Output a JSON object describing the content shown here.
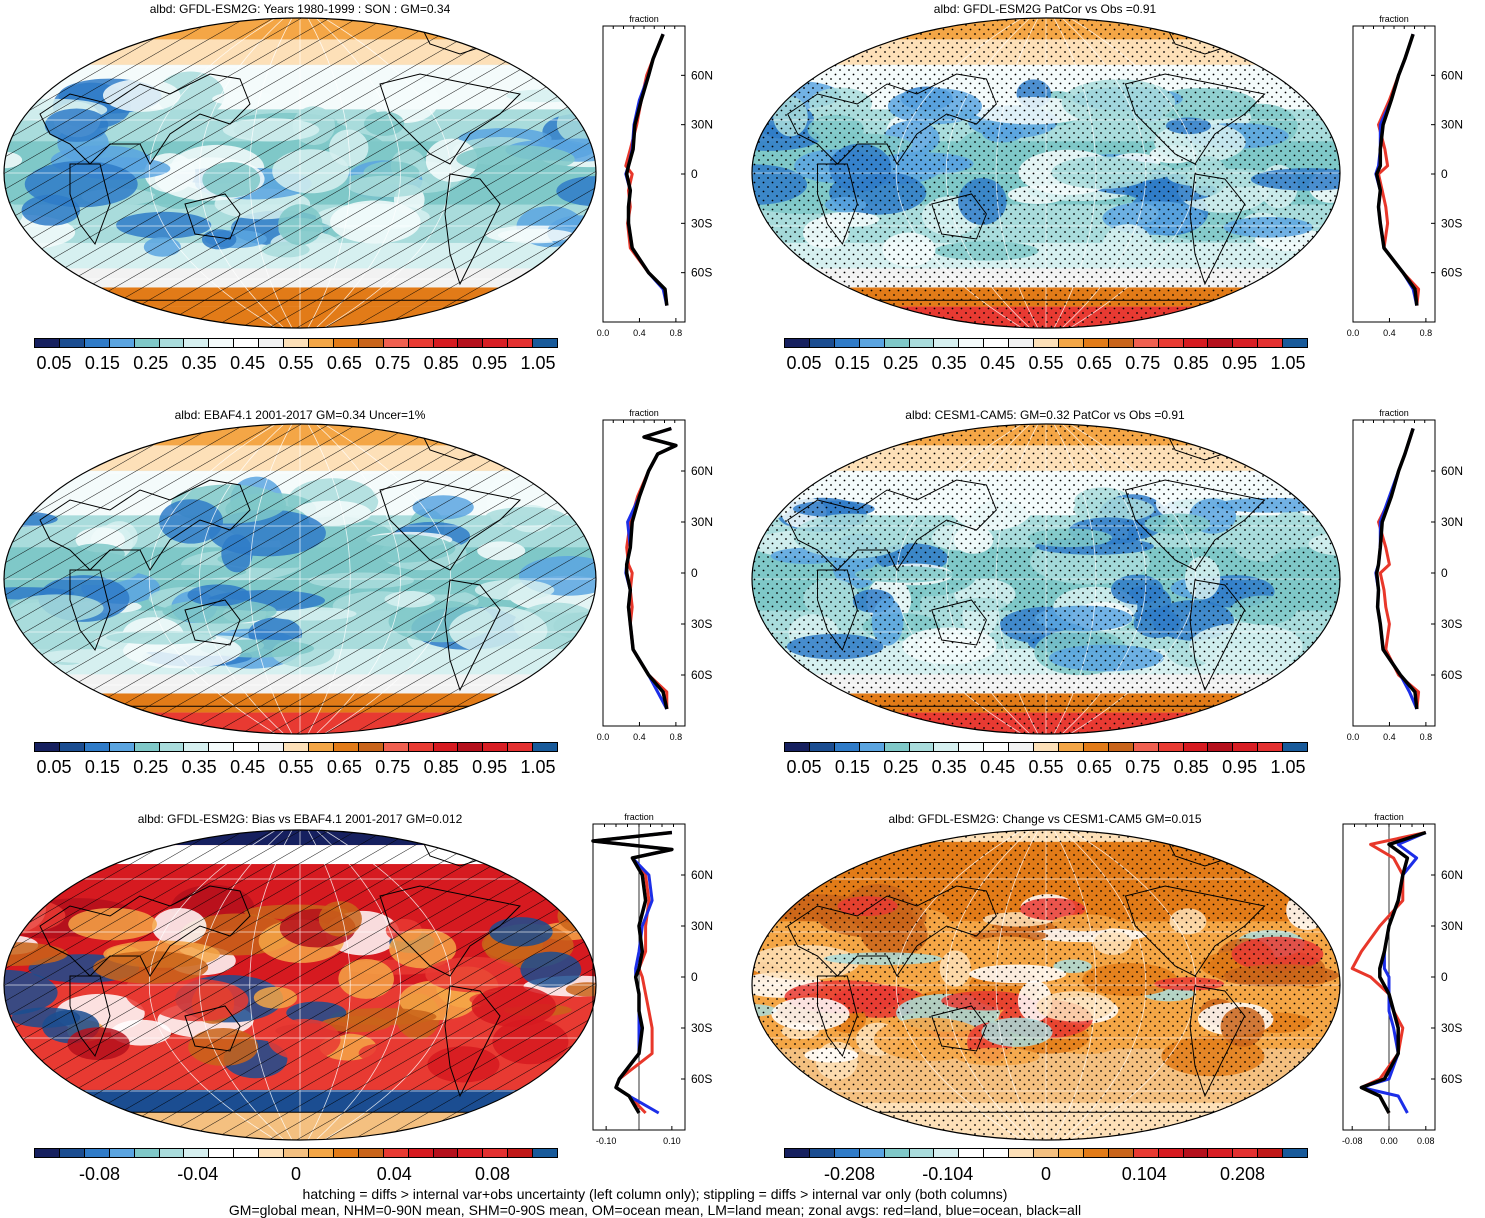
{
  "footer": {
    "line1": "hatching = diffs > internal var+obs uncertainty (left column only); stippling = diffs > internal var only (both columns)",
    "line2": "GM=global mean, NHM=0-90N mean, SHM=0-90S mean, OM=ocean mean, LM=land mean; zonal avgs: red=land, blue=ocean, black=all"
  },
  "colors": {
    "abs_scale": [
      "#16205f",
      "#1b4d91",
      "#2f7bc8",
      "#5aa4e0",
      "#7fc8c8",
      "#a9dcdc",
      "#d6f0f0",
      "#f4fbfb",
      "#ffffff",
      "#f2f2f2",
      "#fde0b8",
      "#f4a646",
      "#e27b18",
      "#c9641a",
      "#f06050",
      "#e83a32",
      "#d61a20",
      "#b5101c",
      "#d81e24",
      "#e33030",
      "#185a9a"
    ],
    "diff_scale": [
      "#16205f",
      "#1b4d91",
      "#2f7bc8",
      "#5aa4e0",
      "#7fc8c8",
      "#a9dcdc",
      "#d6f0f0",
      "#ffffff",
      "#ffffff",
      "#fde0b8",
      "#f4c080",
      "#f4a646",
      "#e27b18",
      "#c9641a",
      "#e83a32",
      "#d61a20",
      "#b5101c",
      "#d81e24",
      "#e33030",
      "#c01818",
      "#185a9a"
    ],
    "land": "#e8372a",
    "ocean": "#1c2ee8",
    "all": "#000000"
  },
  "panels": [
    {
      "id": "p1",
      "title": "albd: GFDL-ESM2G: Years 1980-1999 : SON : GM=0.34",
      "cbar_labels": [
        "0.05",
        "0.15",
        "0.25",
        "0.35",
        "0.45",
        "0.55",
        "0.65",
        "0.75",
        "0.85",
        "0.95",
        "1.05"
      ],
      "zonal_x": [
        "0.0",
        "0.4",
        "0.8"
      ],
      "fraction": "fraction",
      "lat_labels": [
        "60N",
        "30N",
        "0",
        "30S",
        "60S"
      ],
      "pattern": "hatch",
      "scale": "abs"
    },
    {
      "id": "p2",
      "title": "albd: GFDL-ESM2G PatCor vs Obs =0.91",
      "cbar_labels": [
        "0.05",
        "0.15",
        "0.25",
        "0.35",
        "0.45",
        "0.55",
        "0.65",
        "0.75",
        "0.85",
        "0.95",
        "1.05"
      ],
      "zonal_x": [
        "0.0",
        "0.4",
        "0.8"
      ],
      "fraction": "fraction",
      "lat_labels": [
        "60N",
        "30N",
        "0",
        "30S",
        "60S"
      ],
      "pattern": "stipple",
      "scale": "abs"
    },
    {
      "id": "p3",
      "title": "albd: EBAF4.1 2001-2017 GM=0.34 Uncer=1%",
      "cbar_labels": [
        "0.05",
        "0.15",
        "0.25",
        "0.35",
        "0.45",
        "0.55",
        "0.65",
        "0.75",
        "0.85",
        "0.95",
        "1.05"
      ],
      "zonal_x": [
        "0.0",
        "0.4",
        "0.8"
      ],
      "fraction": "fraction",
      "lat_labels": [
        "60N",
        "30N",
        "0",
        "30S",
        "60S"
      ],
      "pattern": "hatch",
      "scale": "abs"
    },
    {
      "id": "p4",
      "title": "albd: CESM1-CAM5: GM=0.32 PatCor vs Obs =0.91",
      "cbar_labels": [
        "0.05",
        "0.15",
        "0.25",
        "0.35",
        "0.45",
        "0.55",
        "0.65",
        "0.75",
        "0.85",
        "0.95",
        "1.05"
      ],
      "zonal_x": [
        "0.0",
        "0.4",
        "0.8"
      ],
      "fraction": "fraction",
      "lat_labels": [
        "60N",
        "30N",
        "0",
        "30S",
        "60S"
      ],
      "pattern": "stipple",
      "scale": "abs"
    },
    {
      "id": "p5",
      "title": "albd: GFDL-ESM2G: Bias vs EBAF4.1 2001-2017  GM=0.012",
      "cbar_labels": [
        "-0.08",
        "-0.04",
        "0",
        "0.04",
        "0.08"
      ],
      "zonal_x": [
        "-0.10",
        "0.10"
      ],
      "fraction": "fraction",
      "lat_labels": [
        "60N",
        "30N",
        "0",
        "30S",
        "60S"
      ],
      "pattern": "hatch",
      "scale": "diff"
    },
    {
      "id": "p6",
      "title": "albd: GFDL-ESM2G: Change vs CESM1-CAM5 GM=0.015",
      "cbar_labels": [
        "-0.208",
        "-0.104",
        "0",
        "0.104",
        "0.208"
      ],
      "zonal_x": [
        "-0.08",
        "0.00",
        "0.08"
      ],
      "fraction": "fraction",
      "lat_labels": [
        "60N",
        "30N",
        "0",
        "30S",
        "60S"
      ],
      "pattern": "stipple",
      "scale": "diff"
    }
  ],
  "chart_data": [
    {
      "type": "heatmap",
      "title": "albd: GFDL-ESM2G: Years 1980-1999 : SON : GM=0.34",
      "colorbar_ticks": [
        0.05,
        0.15,
        0.25,
        0.35,
        0.45,
        0.55,
        0.65,
        0.75,
        0.85,
        0.95,
        1.05
      ],
      "zonal_mean": {
        "xlim": [
          0.0,
          0.9
        ],
        "xticks": [
          0.0,
          0.4,
          0.8
        ],
        "ylabels": [
          "60N",
          "30N",
          "0",
          "30S",
          "60S"
        ],
        "lat": [
          85,
          70,
          60,
          45,
          30,
          15,
          5,
          0,
          -10,
          -20,
          -30,
          -45,
          -60,
          -70,
          -80
        ],
        "all": [
          0.66,
          0.55,
          0.5,
          0.42,
          0.35,
          0.33,
          0.28,
          0.26,
          0.3,
          0.28,
          0.28,
          0.32,
          0.5,
          0.68,
          0.7
        ],
        "land": [
          0.66,
          0.55,
          0.48,
          0.42,
          0.37,
          0.3,
          0.25,
          0.32,
          0.28,
          0.3,
          0.27,
          0.3,
          0.5,
          0.68,
          0.7
        ],
        "ocean": [
          0.66,
          0.55,
          0.5,
          0.4,
          0.34,
          0.32,
          0.28,
          0.25,
          0.3,
          0.28,
          0.28,
          0.32,
          0.5,
          0.66,
          0.7
        ]
      }
    },
    {
      "type": "heatmap",
      "title": "albd: GFDL-ESM2G PatCor vs Obs =0.91",
      "colorbar_ticks": [
        0.05,
        0.15,
        0.25,
        0.35,
        0.45,
        0.55,
        0.65,
        0.75,
        0.85,
        0.95,
        1.05
      ],
      "zonal_mean": {
        "xlim": [
          0.0,
          0.9
        ],
        "xticks": [
          0.0,
          0.4,
          0.8
        ],
        "ylabels": [
          "60N",
          "30N",
          "0",
          "30S",
          "60S"
        ],
        "lat": [
          85,
          70,
          60,
          45,
          30,
          15,
          5,
          0,
          -10,
          -20,
          -30,
          -45,
          -60,
          -70,
          -80
        ],
        "all": [
          0.66,
          0.57,
          0.5,
          0.42,
          0.33,
          0.3,
          0.3,
          0.26,
          0.3,
          0.28,
          0.3,
          0.34,
          0.55,
          0.68,
          0.7
        ],
        "land": [
          0.66,
          0.57,
          0.5,
          0.4,
          0.28,
          0.35,
          0.38,
          0.28,
          0.32,
          0.36,
          0.38,
          0.34,
          0.55,
          0.72,
          0.7
        ],
        "ocean": [
          0.66,
          0.57,
          0.5,
          0.42,
          0.3,
          0.3,
          0.28,
          0.25,
          0.3,
          0.28,
          0.3,
          0.34,
          0.55,
          0.66,
          0.7
        ]
      }
    },
    {
      "type": "heatmap",
      "title": "albd: EBAF4.1 2001-2017 GM=0.34 Uncer=1%",
      "colorbar_ticks": [
        0.05,
        0.15,
        0.25,
        0.35,
        0.45,
        0.55,
        0.65,
        0.75,
        0.85,
        0.95,
        1.05
      ],
      "zonal_mean": {
        "xlim": [
          0.0,
          0.9
        ],
        "xticks": [
          0.0,
          0.4,
          0.8
        ],
        "ylabels": [
          "60N",
          "30N",
          "0",
          "30S",
          "60S"
        ],
        "lat": [
          85,
          80,
          75,
          70,
          60,
          45,
          30,
          15,
          5,
          0,
          -10,
          -20,
          -30,
          -45,
          -60,
          -70,
          -80
        ],
        "all": [
          0.75,
          0.45,
          0.8,
          0.6,
          0.5,
          0.4,
          0.32,
          0.3,
          0.26,
          0.26,
          0.3,
          0.28,
          0.3,
          0.33,
          0.5,
          0.66,
          0.7
        ],
        "land": [
          0.75,
          0.45,
          0.8,
          0.6,
          0.5,
          0.38,
          0.3,
          0.26,
          0.28,
          0.32,
          0.3,
          0.32,
          0.3,
          0.33,
          0.5,
          0.7,
          0.7
        ],
        "ocean": [
          0.75,
          0.45,
          0.8,
          0.6,
          0.5,
          0.4,
          0.27,
          0.3,
          0.26,
          0.25,
          0.3,
          0.28,
          0.3,
          0.33,
          0.5,
          0.6,
          0.7
        ]
      }
    },
    {
      "type": "heatmap",
      "title": "albd: CESM1-CAM5: GM=0.32 PatCor vs Obs =0.91",
      "colorbar_ticks": [
        0.05,
        0.15,
        0.25,
        0.35,
        0.45,
        0.55,
        0.65,
        0.75,
        0.85,
        0.95,
        1.05
      ],
      "zonal_mean": {
        "xlim": [
          0.0,
          0.9
        ],
        "xticks": [
          0.0,
          0.4,
          0.8
        ],
        "ylabels": [
          "60N",
          "30N",
          "0",
          "30S",
          "60S"
        ],
        "lat": [
          85,
          70,
          60,
          45,
          30,
          15,
          5,
          0,
          -10,
          -20,
          -30,
          -45,
          -60,
          -70,
          -80
        ],
        "all": [
          0.66,
          0.57,
          0.5,
          0.42,
          0.32,
          0.3,
          0.28,
          0.26,
          0.28,
          0.27,
          0.3,
          0.33,
          0.52,
          0.68,
          0.7
        ],
        "land": [
          0.66,
          0.57,
          0.5,
          0.42,
          0.28,
          0.36,
          0.4,
          0.3,
          0.34,
          0.36,
          0.4,
          0.36,
          0.5,
          0.72,
          0.7
        ],
        "ocean": [
          0.66,
          0.57,
          0.5,
          0.4,
          0.3,
          0.3,
          0.28,
          0.25,
          0.28,
          0.27,
          0.3,
          0.33,
          0.52,
          0.62,
          0.7
        ]
      }
    },
    {
      "type": "heatmap",
      "title": "albd: GFDL-ESM2G: Bias vs EBAF4.1 2001-2017  GM=0.012",
      "colorbar_ticks": [
        -0.08,
        -0.04,
        0,
        0.04,
        0.08
      ],
      "zonal_mean": {
        "xlim": [
          -0.14,
          0.14
        ],
        "xticks": [
          -0.1,
          0.1
        ],
        "ylabels": [
          "60N",
          "30N",
          "0",
          "30S",
          "60S"
        ],
        "lat": [
          85,
          80,
          75,
          70,
          60,
          45,
          30,
          15,
          5,
          0,
          -10,
          -20,
          -30,
          -45,
          -60,
          -65,
          -70,
          -80
        ],
        "all": [
          0.1,
          -0.14,
          0.1,
          -0.02,
          0.01,
          0.02,
          0.0,
          0.01,
          0.0,
          -0.01,
          0.0,
          0.0,
          0.01,
          0.0,
          -0.06,
          -0.07,
          -0.03,
          0.0
        ],
        "land": [
          0.1,
          -0.14,
          0.1,
          -0.02,
          0.02,
          0.03,
          0.02,
          0.02,
          0.0,
          0.01,
          0.02,
          0.03,
          0.04,
          0.04,
          -0.06,
          -0.07,
          -0.03,
          0.02
        ],
        "ocean": [
          0.1,
          -0.14,
          0.1,
          -0.02,
          0.03,
          0.04,
          0.01,
          0.0,
          -0.01,
          -0.01,
          0.0,
          0.0,
          0.0,
          0.0,
          -0.06,
          -0.07,
          -0.03,
          0.06
        ]
      }
    },
    {
      "type": "heatmap",
      "title": "albd: GFDL-ESM2G: Change vs CESM1-CAM5 GM=0.015",
      "colorbar_ticks": [
        -0.208,
        -0.104,
        0,
        0.104,
        0.208
      ],
      "zonal_mean": {
        "xlim": [
          -0.1,
          0.1
        ],
        "xticks": [
          -0.08,
          0.0,
          0.08
        ],
        "ylabels": [
          "60N",
          "30N",
          "0",
          "30S",
          "60S"
        ],
        "lat": [
          85,
          78,
          70,
          60,
          45,
          30,
          15,
          5,
          0,
          -10,
          -20,
          -30,
          -45,
          -60,
          -65,
          -70,
          -80
        ],
        "all": [
          0.08,
          0.0,
          0.04,
          0.03,
          0.02,
          0.0,
          -0.01,
          -0.02,
          -0.02,
          0.0,
          0.01,
          0.02,
          0.02,
          -0.01,
          -0.06,
          -0.02,
          0.0
        ],
        "land": [
          0.08,
          -0.04,
          0.01,
          0.03,
          0.03,
          -0.02,
          -0.06,
          -0.08,
          -0.04,
          0.0,
          0.01,
          0.03,
          0.02,
          -0.02,
          -0.06,
          -0.02,
          0.0
        ],
        "ocean": [
          0.08,
          0.02,
          0.06,
          0.03,
          0.02,
          0.0,
          -0.01,
          -0.01,
          0.0,
          0.0,
          0.0,
          0.01,
          0.02,
          0.0,
          -0.06,
          0.02,
          0.04
        ]
      }
    }
  ]
}
